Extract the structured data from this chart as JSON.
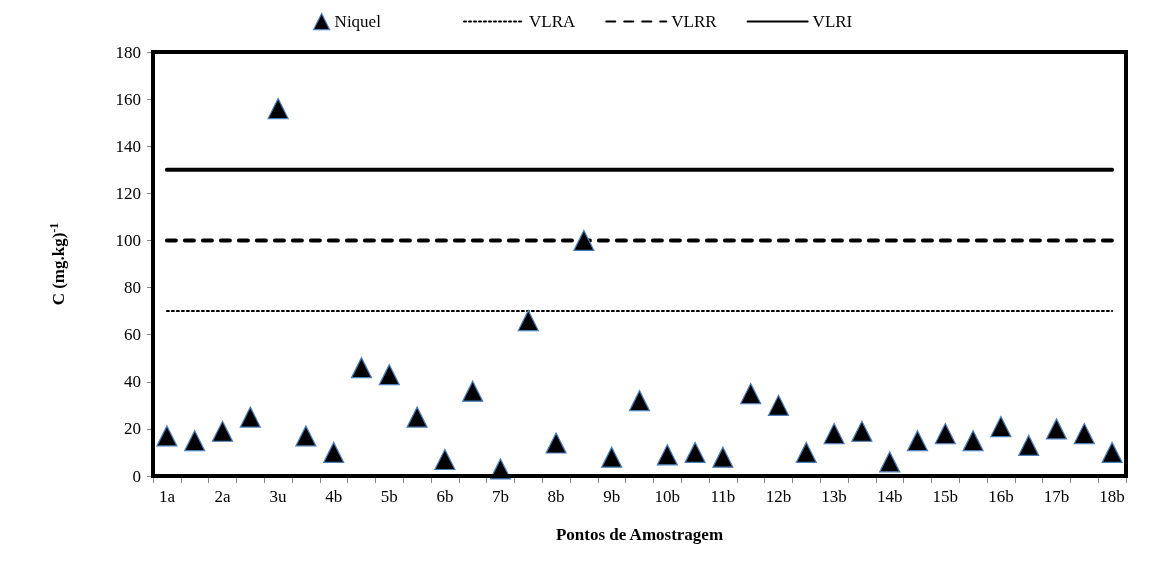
{
  "chart_data": {
    "type": "scatter",
    "xlabel": "Pontos de Amostragem",
    "ylabel": "C (mg.kg)$^{-1}$",
    "categories": [
      "1a",
      null,
      "2a",
      null,
      "3u",
      null,
      "4b",
      null,
      "5b",
      null,
      "6b",
      null,
      "7b",
      null,
      "8b",
      null,
      "9b",
      null,
      "10b",
      null,
      "11b",
      null,
      "12b",
      null,
      "13b",
      null,
      "14b",
      null,
      "15b",
      null,
      "16b",
      null,
      "17b",
      null,
      "18b"
    ],
    "series": [
      {
        "name": "Niquel",
        "type": "scatter",
        "color": "#000000",
        "marker": "triangle",
        "values": [
          17,
          15,
          19,
          25,
          156,
          17,
          10,
          46,
          43,
          25,
          7,
          36,
          3,
          66,
          14,
          100,
          8,
          32,
          9,
          10,
          8,
          35,
          30,
          10,
          18,
          19,
          6,
          15,
          18,
          15,
          21,
          13,
          20,
          18,
          10
        ]
      },
      {
        "name": "VLRA",
        "type": "line",
        "color": "#000000",
        "marker": "none",
        "line_style": "dotted",
        "values": [
          70,
          70,
          70,
          70,
          70,
          70,
          70,
          70,
          70,
          70,
          70,
          70,
          70,
          70,
          70,
          70,
          70,
          70,
          70,
          70,
          70,
          70,
          70,
          70,
          70,
          70,
          70,
          70,
          70,
          70,
          70,
          70,
          70,
          70,
          70
        ]
      },
      {
        "name": "VLRR",
        "type": "line",
        "color": "#000000",
        "marker": "none",
        "line_style": "dashed",
        "values": [
          100,
          100,
          100,
          100,
          100,
          100,
          100,
          100,
          100,
          100,
          100,
          100,
          100,
          100,
          100,
          100,
          100,
          100,
          100,
          100,
          100,
          100,
          100,
          100,
          100,
          100,
          100,
          100,
          100,
          100,
          100,
          100,
          100,
          100,
          100
        ]
      },
      {
        "name": "VLRI",
        "type": "line",
        "color": "#000000",
        "marker": "none",
        "line_style": "solid",
        "values": [
          130,
          130,
          130,
          130,
          130,
          130,
          130,
          130,
          130,
          130,
          130,
          130,
          130,
          130,
          130,
          130,
          130,
          130,
          130,
          130,
          130,
          130,
          130,
          130,
          130,
          130,
          130,
          130,
          130,
          130,
          130,
          130,
          130,
          130,
          130
        ]
      }
    ],
    "ylim": [
      0,
      180
    ],
    "yticks": [
      0,
      20,
      40,
      60,
      80,
      100,
      120,
      140,
      160,
      180
    ],
    "grid": false,
    "legend": "top"
  }
}
